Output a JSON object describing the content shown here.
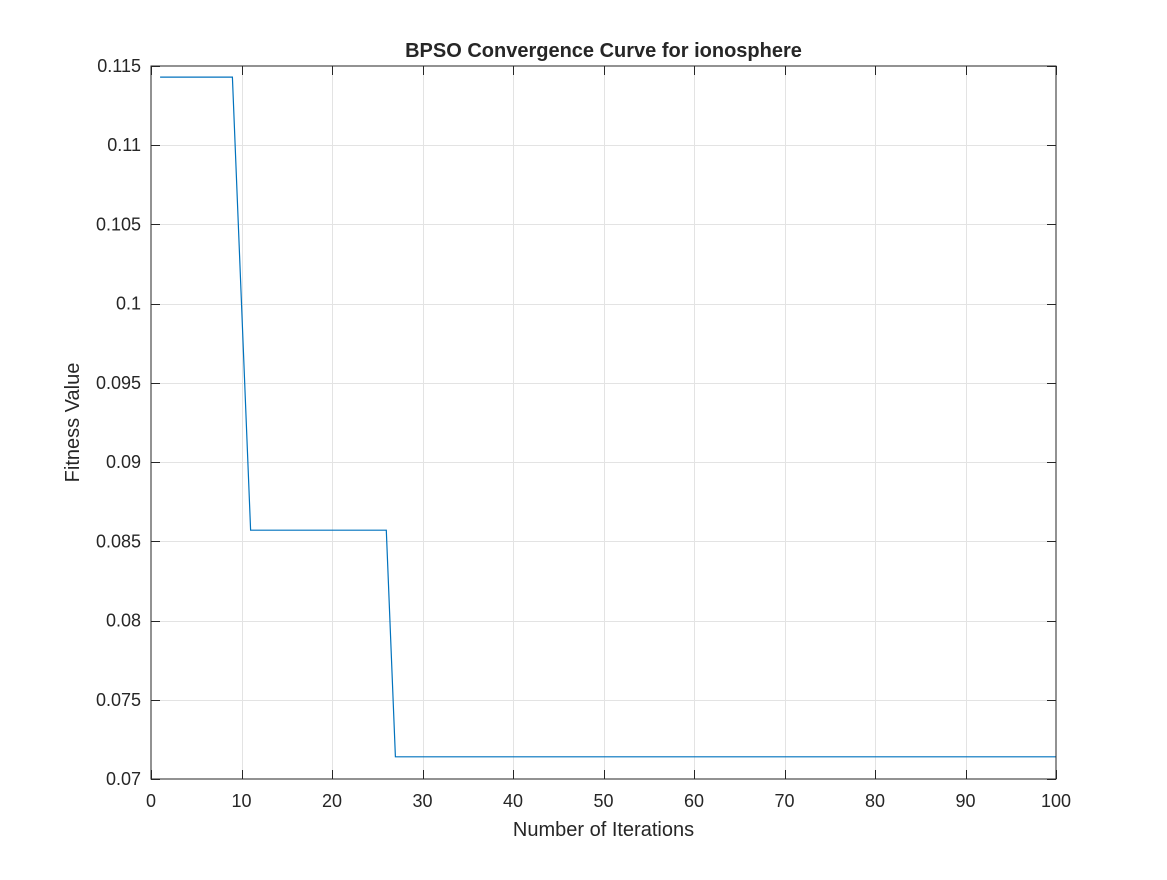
{
  "figure": {
    "background": "#ffffff"
  },
  "chart_data": {
    "type": "line",
    "title": "BPSO Convergence Curve for ionosphere",
    "xlabel": "Number of Iterations",
    "ylabel": "Fitness Value",
    "xlim": [
      0,
      100
    ],
    "ylim": [
      0.07,
      0.115
    ],
    "xticks": [
      0,
      10,
      20,
      30,
      40,
      50,
      60,
      70,
      80,
      90,
      100
    ],
    "xtick_labels": [
      "0",
      "10",
      "20",
      "30",
      "40",
      "50",
      "60",
      "70",
      "80",
      "90",
      "100"
    ],
    "yticks": [
      0.07,
      0.075,
      0.08,
      0.085,
      0.09,
      0.095,
      0.1,
      0.105,
      0.11,
      0.115
    ],
    "ytick_labels": [
      "0.07",
      "0.075",
      "0.08",
      "0.085",
      "0.09",
      "0.095",
      "0.1",
      "0.105",
      "0.11",
      "0.115"
    ],
    "grid": true,
    "box": true,
    "series": [
      {
        "color": "#0072bd",
        "x": [
          1,
          9,
          11,
          26,
          27,
          100
        ],
        "y": [
          0.1143,
          0.1143,
          0.0857,
          0.0857,
          0.0714,
          0.0714
        ]
      }
    ]
  }
}
